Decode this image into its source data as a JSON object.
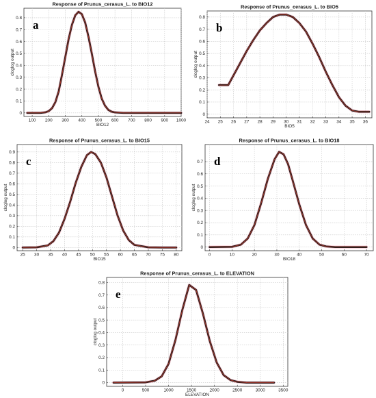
{
  "chart_data": [
    {
      "type": "line",
      "panel_label": "a",
      "title": "Response of Prunus_cerasus_L. to BIO12",
      "xlabel": "BIO12",
      "ylabel": "cloglog output",
      "xlim": [
        50,
        1000
      ],
      "ylim": [
        -0.03,
        0.88
      ],
      "xticks": [
        100,
        200,
        300,
        400,
        500,
        600,
        700,
        800,
        900,
        1000
      ],
      "yticks": [
        0,
        0.1,
        0.2,
        0.3,
        0.4,
        0.5,
        0.6,
        0.7,
        0.8
      ],
      "grid": true,
      "series": [
        {
          "x": [
            70,
            150,
            180,
            200,
            220,
            240,
            260,
            280,
            300,
            320,
            340,
            360,
            380,
            400,
            420,
            440,
            460,
            480,
            500,
            520,
            540,
            560,
            580,
            600,
            650,
            700,
            800,
            900,
            1000
          ],
          "y": [
            0.0,
            0.0,
            0.005,
            0.015,
            0.04,
            0.09,
            0.18,
            0.32,
            0.47,
            0.62,
            0.74,
            0.82,
            0.85,
            0.83,
            0.76,
            0.64,
            0.5,
            0.35,
            0.22,
            0.12,
            0.06,
            0.025,
            0.01,
            0.004,
            0.0,
            0.0,
            0.0,
            0.0,
            0.0
          ]
        }
      ]
    },
    {
      "type": "line",
      "panel_label": "b",
      "title": "Response of Prunus_cerasus_L. to BIO5",
      "xlabel": "BIO5",
      "ylabel": "cloglog output",
      "xlim": [
        24,
        36.5
      ],
      "ylim": [
        -0.03,
        0.85
      ],
      "xticks": [
        24,
        25,
        26,
        27,
        28,
        29,
        30,
        31,
        32,
        33,
        34,
        35,
        36
      ],
      "yticks": [
        0,
        0.1,
        0.2,
        0.3,
        0.4,
        0.5,
        0.6,
        0.7,
        0.8
      ],
      "grid": true,
      "series": [
        {
          "x": [
            24.9,
            25.6,
            26,
            26.5,
            27,
            27.5,
            28,
            28.5,
            29,
            29.5,
            30,
            30.5,
            31,
            31.5,
            32,
            32.5,
            33,
            33.5,
            34,
            34.5,
            35,
            35.5,
            36.3
          ],
          "y": [
            0.24,
            0.24,
            0.32,
            0.42,
            0.52,
            0.61,
            0.69,
            0.75,
            0.8,
            0.82,
            0.82,
            0.8,
            0.75,
            0.68,
            0.58,
            0.47,
            0.35,
            0.24,
            0.14,
            0.07,
            0.03,
            0.02,
            0.02
          ]
        }
      ]
    },
    {
      "type": "line",
      "panel_label": "c",
      "title": "Response of Prunus_cerasus_L. to BIO15",
      "xlabel": "BIO15",
      "ylabel": "cloglog output",
      "xlim": [
        23,
        82
      ],
      "ylim": [
        -0.03,
        0.97
      ],
      "xticks": [
        25,
        30,
        35,
        40,
        45,
        50,
        55,
        60,
        65,
        70,
        75,
        80
      ],
      "yticks": [
        0,
        0.1,
        0.2,
        0.3,
        0.4,
        0.5,
        0.6,
        0.7,
        0.8,
        0.9
      ],
      "grid": true,
      "series": [
        {
          "x": [
            25,
            30,
            34,
            36,
            38,
            40,
            42,
            44,
            46,
            48,
            49.5,
            51,
            53,
            55,
            57,
            59,
            61,
            63,
            65,
            70,
            75,
            80
          ],
          "y": [
            0.0,
            0.002,
            0.02,
            0.06,
            0.14,
            0.27,
            0.43,
            0.61,
            0.76,
            0.87,
            0.9,
            0.88,
            0.8,
            0.66,
            0.48,
            0.3,
            0.16,
            0.07,
            0.025,
            0.002,
            0.0,
            0.0
          ]
        }
      ]
    },
    {
      "type": "line",
      "panel_label": "d",
      "title": "Response of Prunus_cerasus_L. to BIO18",
      "xlabel": "BIO18",
      "ylabel": "cloglog output",
      "xlim": [
        -2,
        73
      ],
      "ylim": [
        -0.03,
        0.84
      ],
      "xticks": [
        0,
        10,
        20,
        30,
        40,
        50,
        60,
        70
      ],
      "yticks": [
        0,
        0.1,
        0.2,
        0.3,
        0.4,
        0.5,
        0.6,
        0.7
      ],
      "grid": true,
      "series": [
        {
          "x": [
            0,
            10,
            14,
            17,
            20,
            23,
            26,
            29,
            31,
            33,
            35,
            37,
            40,
            43,
            46,
            49,
            52,
            56,
            60,
            70
          ],
          "y": [
            0.0,
            0.002,
            0.02,
            0.07,
            0.18,
            0.36,
            0.56,
            0.72,
            0.78,
            0.76,
            0.68,
            0.55,
            0.35,
            0.18,
            0.07,
            0.02,
            0.005,
            0.0,
            0.0,
            0.0
          ]
        }
      ]
    },
    {
      "type": "line",
      "panel_label": "e",
      "title": "Response of Prunus_cerasus_L. to ELEVATION",
      "xlabel": "ELEVATION",
      "ylabel": "cloglog output",
      "xlim": [
        -350,
        3600
      ],
      "ylim": [
        -0.03,
        0.84
      ],
      "xticks": [
        0,
        500,
        1000,
        1500,
        2000,
        2500,
        3000,
        3500
      ],
      "yticks": [
        0,
        0.1,
        0.2,
        0.3,
        0.4,
        0.5,
        0.6,
        0.7,
        0.8
      ],
      "grid": true,
      "series": [
        {
          "x": [
            -200,
            500,
            700,
            850,
            1000,
            1150,
            1300,
            1450,
            1600,
            1750,
            1900,
            2050,
            2200,
            2350,
            2500,
            2700,
            3000,
            3300
          ],
          "y": [
            0.0,
            0.002,
            0.015,
            0.05,
            0.15,
            0.34,
            0.58,
            0.78,
            0.74,
            0.55,
            0.33,
            0.16,
            0.06,
            0.02,
            0.006,
            0.0,
            0.0,
            0.0
          ]
        }
      ]
    }
  ],
  "style": {
    "curve_color": "#1a1a1a",
    "mean_color": "#c0392b",
    "band_color": "#f5a3b3"
  }
}
